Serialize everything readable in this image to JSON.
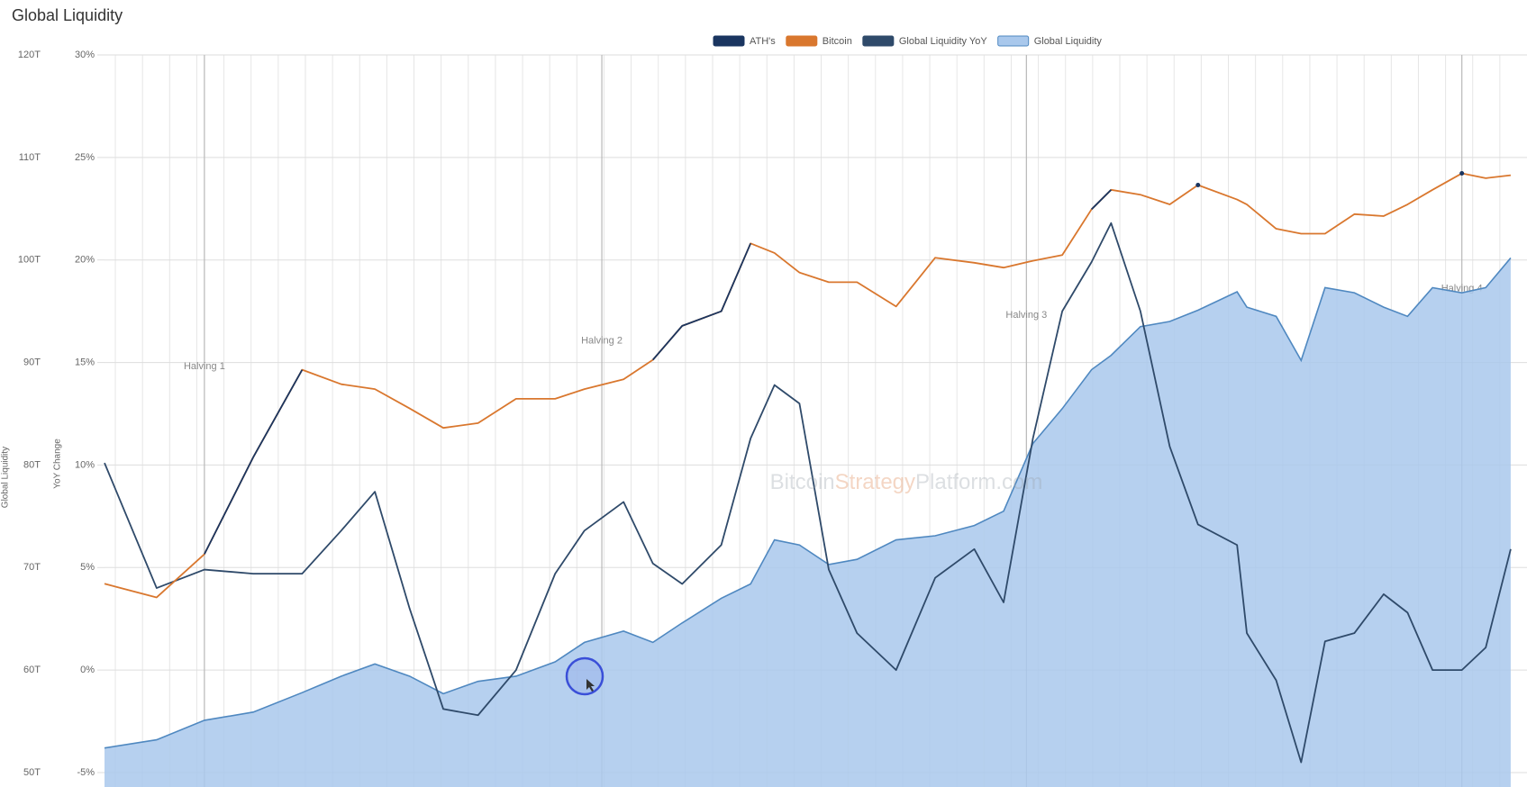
{
  "chart_data": {
    "type": "line",
    "title": "Global Liquidity",
    "ylabel": "Global Liquidity",
    "y2label": "YoY Change",
    "watermark": [
      "Bitcoin",
      "Strategy",
      "Platform.com"
    ],
    "xlim": [
      2011.9,
      2025.0
    ],
    "xticks": [
      2012,
      2012.25,
      2012.5,
      2012.75,
      2013,
      2013.25,
      2013.5,
      2013.75,
      2014,
      2014.25,
      2014.5,
      2014.75,
      2015,
      2015.25,
      2015.5,
      2015.75,
      2016,
      2016.25,
      2016.5,
      2016.75,
      2017,
      2017.25,
      2017.5,
      2017.75,
      2018,
      2018.25,
      2018.5,
      2018.75,
      2019,
      2019.25,
      2019.5,
      2019.75,
      2020,
      2020.25,
      2020.5,
      2020.75,
      2021,
      2021.25,
      2021.5,
      2021.75,
      2022,
      2022.25,
      2022.5,
      2022.75,
      2023,
      2023.25,
      2023.5,
      2023.75,
      2024,
      2024.25,
      2024.5,
      2024.75
    ],
    "ylim": [
      50,
      120
    ],
    "yticks": [
      {
        "value": 50,
        "label": "50T"
      },
      {
        "value": 60,
        "label": "60T"
      },
      {
        "value": 70,
        "label": "70T"
      },
      {
        "value": 80,
        "label": "80T"
      },
      {
        "value": 90,
        "label": "90T"
      },
      {
        "value": 100,
        "label": "100T"
      },
      {
        "value": 110,
        "label": "110T"
      },
      {
        "value": 120,
        "label": "120T"
      }
    ],
    "y2lim": [
      -5,
      30
    ],
    "y2ticks": [
      {
        "value": -5,
        "label": "-5%"
      },
      {
        "value": 0,
        "label": "0%"
      },
      {
        "value": 5,
        "label": "5%"
      },
      {
        "value": 10,
        "label": "10%"
      },
      {
        "value": 15,
        "label": "15%"
      },
      {
        "value": 20,
        "label": "20%"
      },
      {
        "value": 25,
        "label": "25%"
      },
      {
        "value": 30,
        "label": "30%"
      }
    ],
    "y3lim": [
      0.04,
      1450000
    ],
    "y3log": true,
    "grid": true,
    "legend": "top",
    "x": [
      2011.9,
      2012.38,
      2012.82,
      2013.27,
      2013.72,
      2014.08,
      2014.39,
      2014.71,
      2015.02,
      2015.34,
      2015.69,
      2016.05,
      2016.32,
      2016.68,
      2016.95,
      2017.22,
      2017.58,
      2017.85,
      2018.07,
      2018.3,
      2018.57,
      2018.83,
      2019.19,
      2019.55,
      2019.91,
      2020.18,
      2020.45,
      2020.72,
      2020.99,
      2021.17,
      2021.44,
      2021.71,
      2021.97,
      2022.33,
      2022.42,
      2022.69,
      2022.92,
      2023.14,
      2023.41,
      2023.68,
      2023.9,
      2024.13,
      2024.4,
      2024.62,
      2024.85
    ],
    "series": [
      {
        "name": "ATH's",
        "color": "#1a3560",
        "axis": "y3",
        "values": [
          null,
          null,
          8.0,
          84,
          700,
          null,
          null,
          null,
          null,
          null,
          null,
          null,
          null,
          null,
          890,
          2030,
          2890,
          15000,
          null,
          null,
          null,
          null,
          null,
          null,
          null,
          null,
          null,
          null,
          34300,
          55000,
          null,
          null,
          61800,
          null,
          null,
          null,
          null,
          null,
          null,
          null,
          null,
          null,
          82000,
          null,
          null
        ]
      },
      {
        "name": "Bitcoin",
        "color": "#d9772e",
        "axis": "y3",
        "values": [
          3.9,
          2.8,
          8.0,
          84,
          700,
          493,
          438,
          274,
          171,
          192,
          346,
          346,
          438,
          555,
          890,
          2030,
          2890,
          15000,
          11900,
          7400,
          5860,
          5860,
          3250,
          10600,
          9380,
          8340,
          9840,
          11300,
          34300,
          55000,
          48900,
          38600,
          61800,
          43500,
          38600,
          21400,
          19000,
          19000,
          30500,
          29100,
          38600,
          55000,
          82000,
          73000,
          78300
        ]
      },
      {
        "name": "Global Liquidity YoY",
        "color": "#2f4a6a",
        "axis": "y2",
        "values": [
          10.1,
          4.0,
          4.9,
          4.7,
          4.7,
          6.8,
          8.7,
          3.0,
          -1.9,
          -2.2,
          0.0,
          4.7,
          6.8,
          8.2,
          5.2,
          4.2,
          6.1,
          11.3,
          13.9,
          13.0,
          4.9,
          1.8,
          0.0,
          4.5,
          5.9,
          3.3,
          11.3,
          17.5,
          19.9,
          21.8,
          17.5,
          10.9,
          7.1,
          6.1,
          1.8,
          -0.5,
          -4.5,
          1.4,
          1.8,
          3.7,
          2.8,
          0.0,
          0.0,
          1.1,
          5.9
        ]
      },
      {
        "name": "Global Liquidity",
        "color": "#a9c8ec",
        "style": "area",
        "axis": "y",
        "values": [
          52.4,
          53.2,
          55.1,
          55.9,
          57.8,
          59.4,
          60.6,
          59.4,
          57.7,
          58.9,
          59.4,
          60.8,
          62.7,
          63.8,
          62.7,
          64.6,
          67.0,
          68.4,
          72.7,
          72.2,
          70.3,
          70.8,
          72.7,
          73.1,
          74.1,
          75.5,
          82.1,
          85.5,
          89.3,
          90.7,
          93.5,
          94.0,
          95.1,
          96.9,
          95.4,
          94.5,
          90.2,
          97.3,
          96.8,
          95.4,
          94.5,
          97.3,
          96.8,
          97.3,
          100.2
        ]
      }
    ],
    "annotations": [
      {
        "text": "Halving 1",
        "x": 2012.82,
        "y": 89.6
      },
      {
        "text": "Halving 2",
        "x": 2016.48,
        "y": 92.1
      },
      {
        "text": "Halving 3",
        "x": 2020.39,
        "y": 94.6
      },
      {
        "text": "Halving 4",
        "x": 2024.4,
        "y": 97.2
      }
    ]
  }
}
